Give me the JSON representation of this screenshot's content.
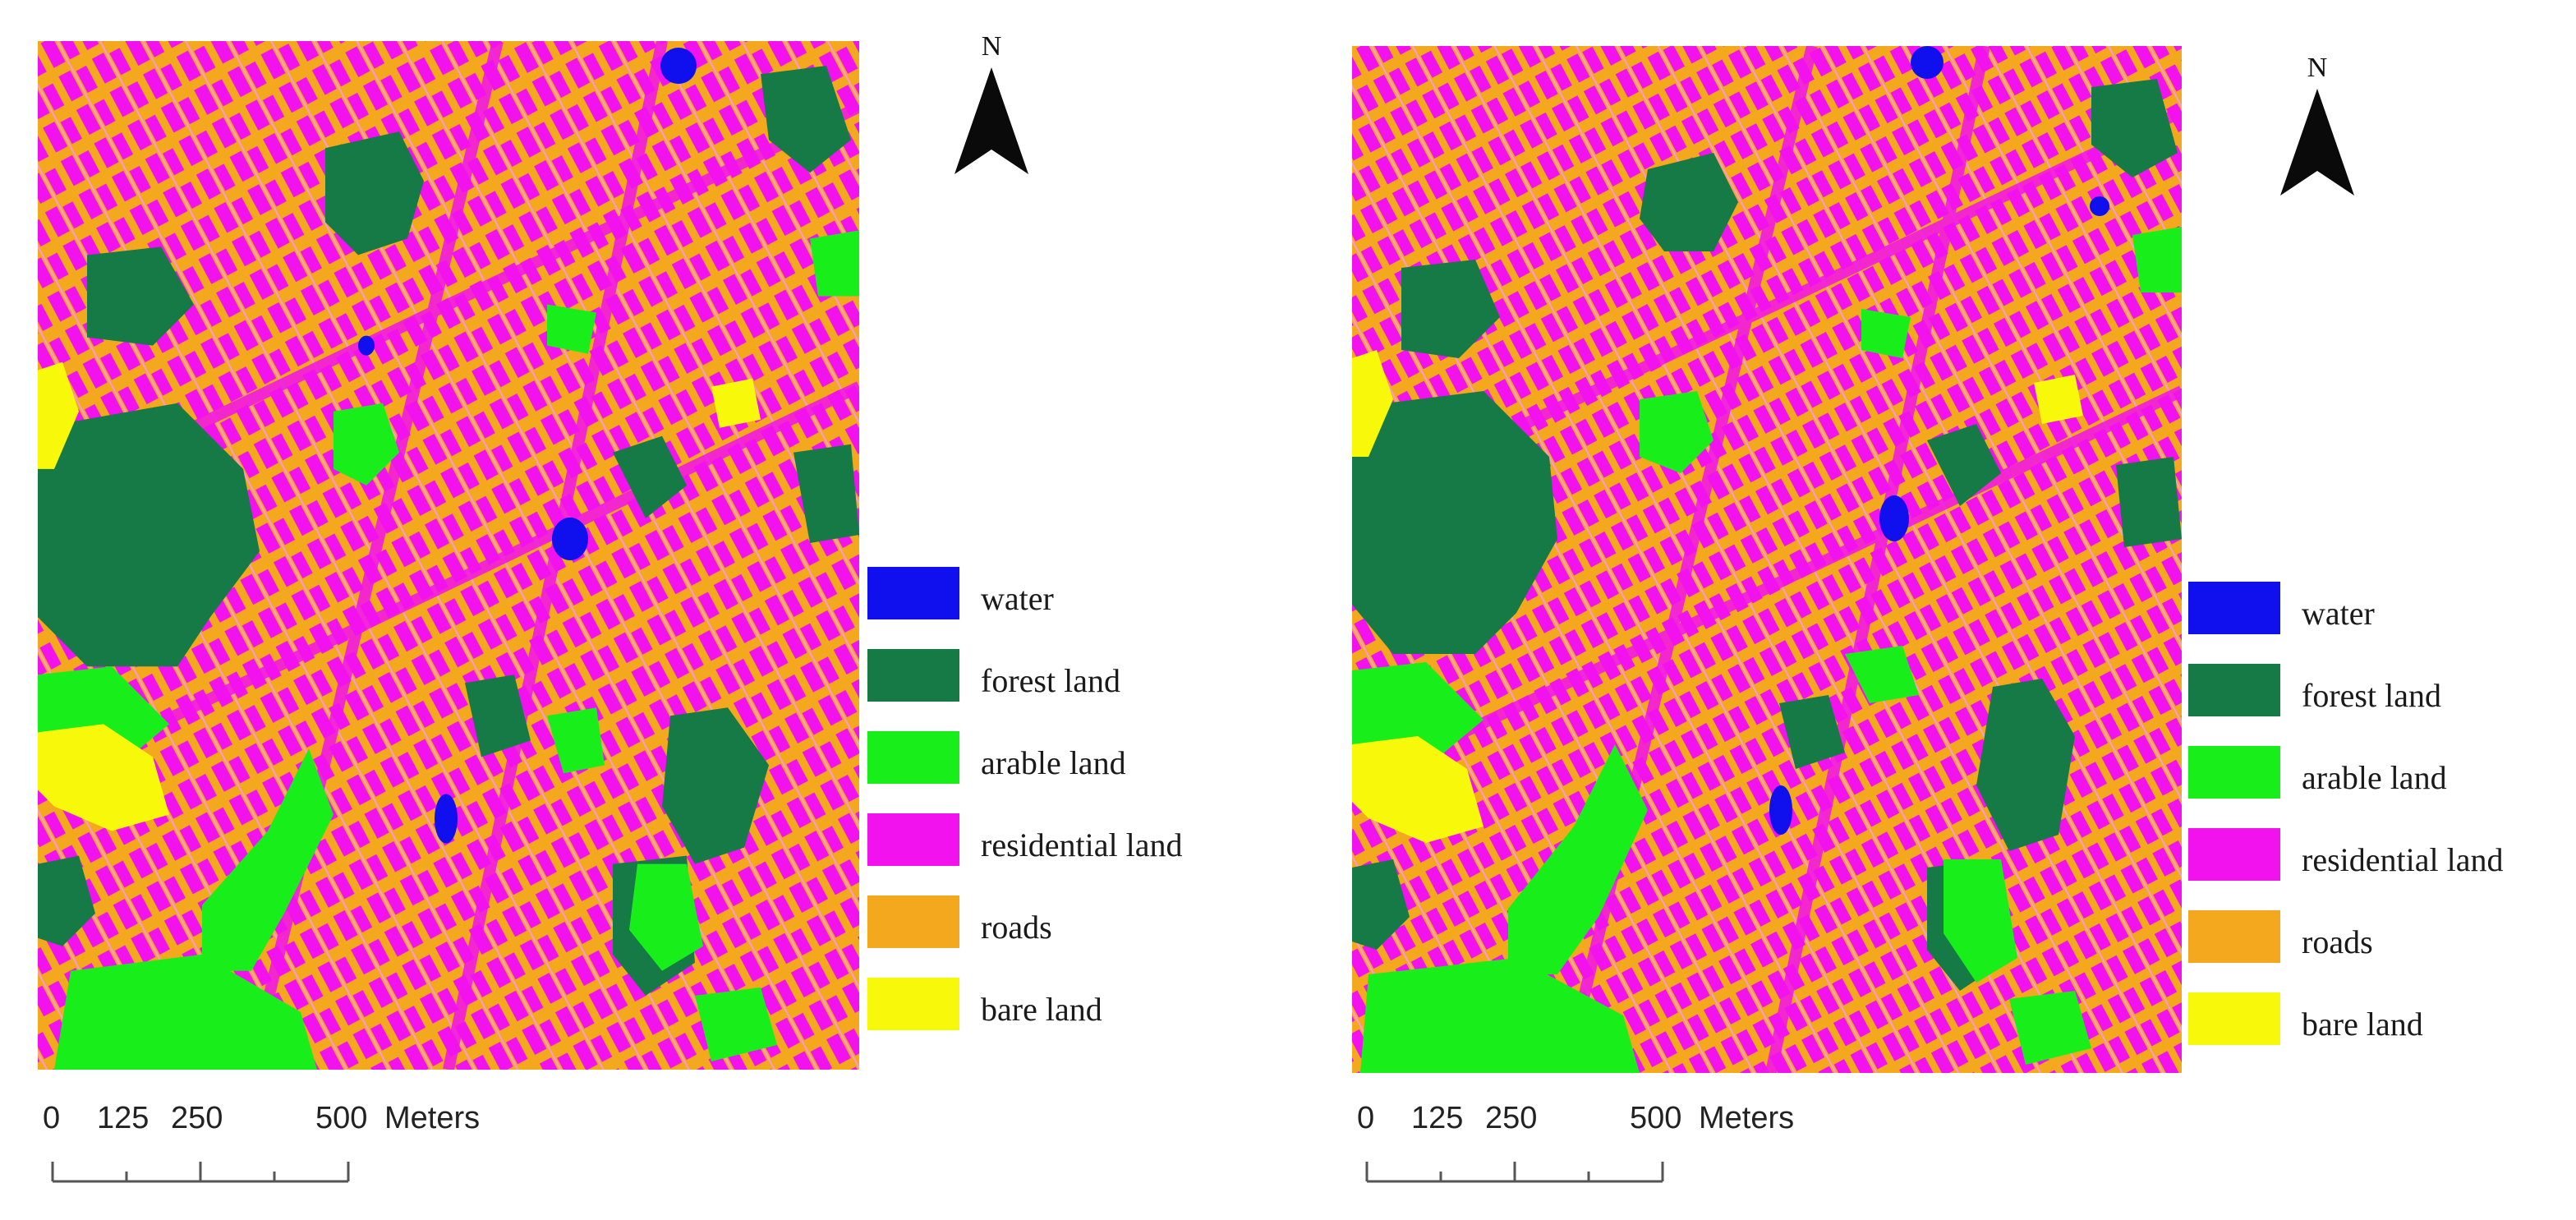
{
  "maps": [
    {
      "north_label": "N",
      "legend": [
        {
          "label": "water",
          "color": "#1010ee"
        },
        {
          "label": "forest land",
          "color": "#157a45"
        },
        {
          "label": "arable land",
          "color": "#18ef1a"
        },
        {
          "label": "residential land",
          "color": "#f212ee"
        },
        {
          "label": "roads",
          "color": "#f4a81d"
        },
        {
          "label": "bare land",
          "color": "#f8f80a"
        }
      ],
      "scale": {
        "ticks": [
          "0",
          "125",
          "250",
          "500"
        ],
        "unit": "Meters"
      }
    },
    {
      "north_label": "N",
      "legend": [
        {
          "label": "water",
          "color": "#1010ee"
        },
        {
          "label": "forest land",
          "color": "#157a45"
        },
        {
          "label": "arable land",
          "color": "#18ef1a"
        },
        {
          "label": "residential land",
          "color": "#f212ee"
        },
        {
          "label": "roads",
          "color": "#f4a81d"
        },
        {
          "label": "bare land",
          "color": "#f8f80a"
        }
      ],
      "scale": {
        "ticks": [
          "0",
          "125",
          "250",
          "500"
        ],
        "unit": "Meters"
      }
    }
  ]
}
